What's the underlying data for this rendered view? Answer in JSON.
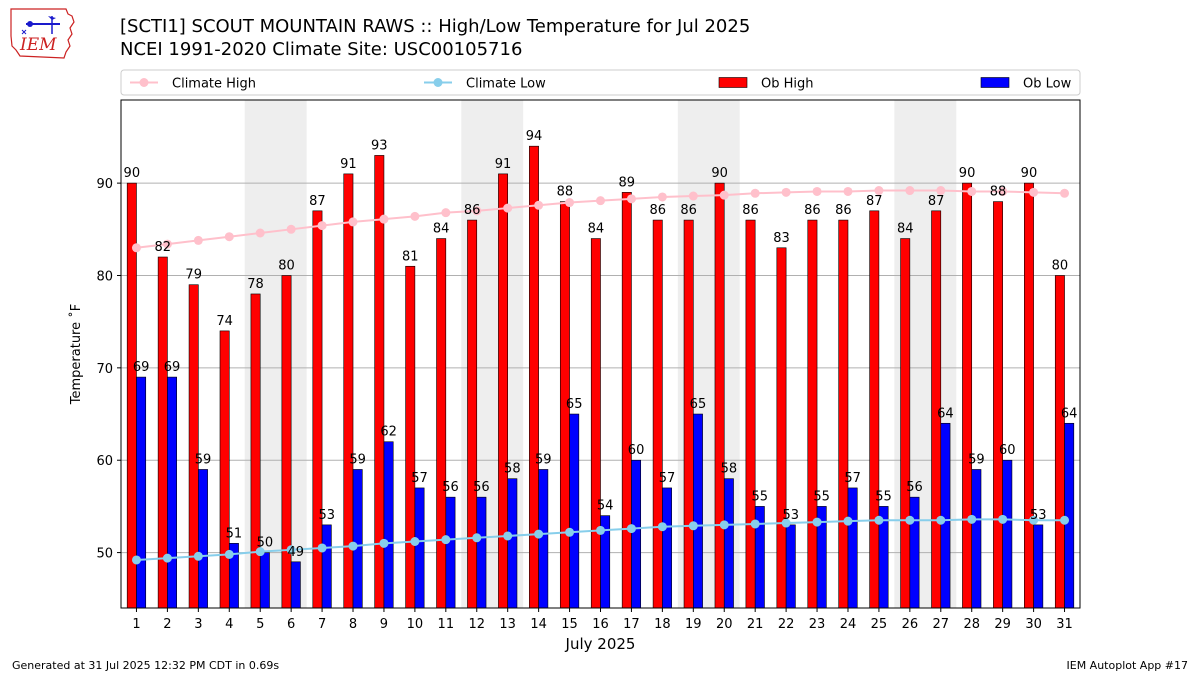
{
  "header": {
    "title_line1": "[SCTI1] SCOUT MOUNTAIN RAWS :: High/Low Temperature for Jul 2025",
    "title_line2": "NCEI 1991-2020 Climate Site: USC00105716",
    "logo_text": "IEM"
  },
  "footer": {
    "generated": "Generated at 31 Jul 2025 12:32 PM CDT in 0.69s",
    "app": "IEM Autoplot App #17"
  },
  "colors": {
    "ob_high": "#ff0000",
    "ob_low": "#0000ff",
    "climate_high": "#ffc0cb",
    "climate_low": "#87ceeb",
    "weekend_shade": "#eeeeee",
    "logo_red": "#cc2222",
    "logo_blue": "#1a1acc"
  },
  "chart_data": {
    "type": "bar",
    "xlabel": "July 2025",
    "ylabel": "Temperature ˚F",
    "ylim": [
      44,
      99
    ],
    "yticks": [
      50,
      60,
      70,
      80,
      90
    ],
    "grid": "horizontal",
    "legend_position": "top",
    "categories": [
      "1",
      "2",
      "3",
      "4",
      "5",
      "6",
      "7",
      "8",
      "9",
      "10",
      "11",
      "12",
      "13",
      "14",
      "15",
      "16",
      "17",
      "18",
      "19",
      "20",
      "21",
      "22",
      "23",
      "24",
      "25",
      "26",
      "27",
      "28",
      "29",
      "30",
      "31"
    ],
    "shaded_days": [
      [
        5,
        6
      ],
      [
        12,
        13
      ],
      [
        19,
        20
      ],
      [
        26,
        27
      ]
    ],
    "series": [
      {
        "name": "Climate High",
        "kind": "line",
        "values": [
          83.0,
          83.4,
          83.8,
          84.2,
          84.6,
          85.0,
          85.4,
          85.8,
          86.1,
          86.4,
          86.8,
          87.0,
          87.3,
          87.6,
          87.9,
          88.1,
          88.3,
          88.5,
          88.6,
          88.7,
          88.9,
          89.0,
          89.1,
          89.1,
          89.2,
          89.2,
          89.2,
          89.1,
          89.1,
          89.0,
          88.9
        ]
      },
      {
        "name": "Climate Low",
        "kind": "line",
        "values": [
          49.2,
          49.4,
          49.6,
          49.8,
          50.1,
          50.3,
          50.5,
          50.7,
          51.0,
          51.2,
          51.4,
          51.6,
          51.8,
          52.0,
          52.2,
          52.4,
          52.6,
          52.8,
          52.9,
          53.0,
          53.1,
          53.2,
          53.3,
          53.4,
          53.5,
          53.5,
          53.5,
          53.6,
          53.6,
          53.5,
          53.5
        ]
      },
      {
        "name": "Ob High",
        "kind": "bar",
        "values": [
          90,
          82,
          79,
          74,
          78,
          80,
          87,
          91,
          93,
          81,
          84,
          86,
          91,
          94,
          88,
          84,
          89,
          86,
          86,
          90,
          86,
          83,
          86,
          86,
          87,
          84,
          87,
          90,
          88,
          90,
          80
        ]
      },
      {
        "name": "Ob Low",
        "kind": "bar",
        "values": [
          69,
          69,
          59,
          51,
          50,
          49,
          53,
          59,
          62,
          57,
          56,
          56,
          58,
          59,
          65,
          54,
          60,
          57,
          65,
          58,
          55,
          53,
          55,
          57,
          55,
          56,
          64,
          59,
          60,
          53,
          64
        ]
      }
    ]
  }
}
